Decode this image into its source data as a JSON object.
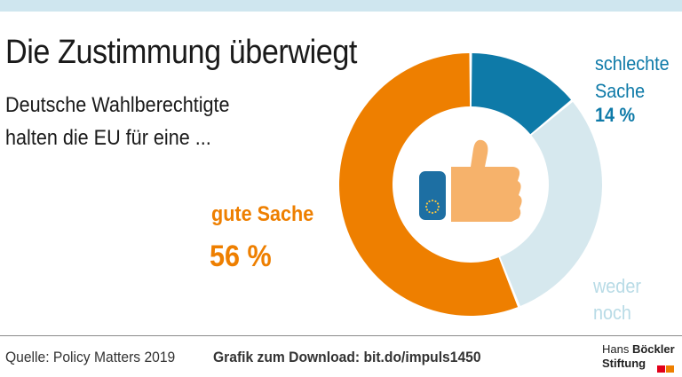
{
  "title": "Die Zustimmung überwiegt",
  "subtitle_lines": [
    "Deutsche Wahlberechtigte",
    "halten die EU für eine ..."
  ],
  "source": "Quelle: Policy Matters 2019",
  "download": "Grafik zum Download: bit.do/impuls1450",
  "logo": {
    "line1_regular": "Hans ",
    "line1_bold": "Böckler",
    "line2": "Stiftung"
  },
  "icons": {
    "center": "thumbs-up-eu-icon"
  },
  "colors": {
    "good": "#ee7f00",
    "bad": "#0e7aa8",
    "neither": "#d6e8ee",
    "thumb": "#f6b26b",
    "eu_flag": "#1d6fa3",
    "eu_stars": "#f5c542"
  },
  "chart_data": {
    "type": "pie",
    "variant": "donut",
    "series": [
      {
        "name": "schlechte Sache",
        "name_lines": [
          "schlechte",
          "Sache"
        ],
        "value": 14,
        "label": "14 %",
        "color": "#0e7aa8"
      },
      {
        "name": "weder noch",
        "name_lines": [
          "weder",
          "noch"
        ],
        "value": 30,
        "label": "",
        "color": "#d6e8ee"
      },
      {
        "name": "gute Sache",
        "name_lines": [
          "gute Sache"
        ],
        "value": 56,
        "label": "56 %",
        "color": "#ee7f00"
      }
    ]
  }
}
